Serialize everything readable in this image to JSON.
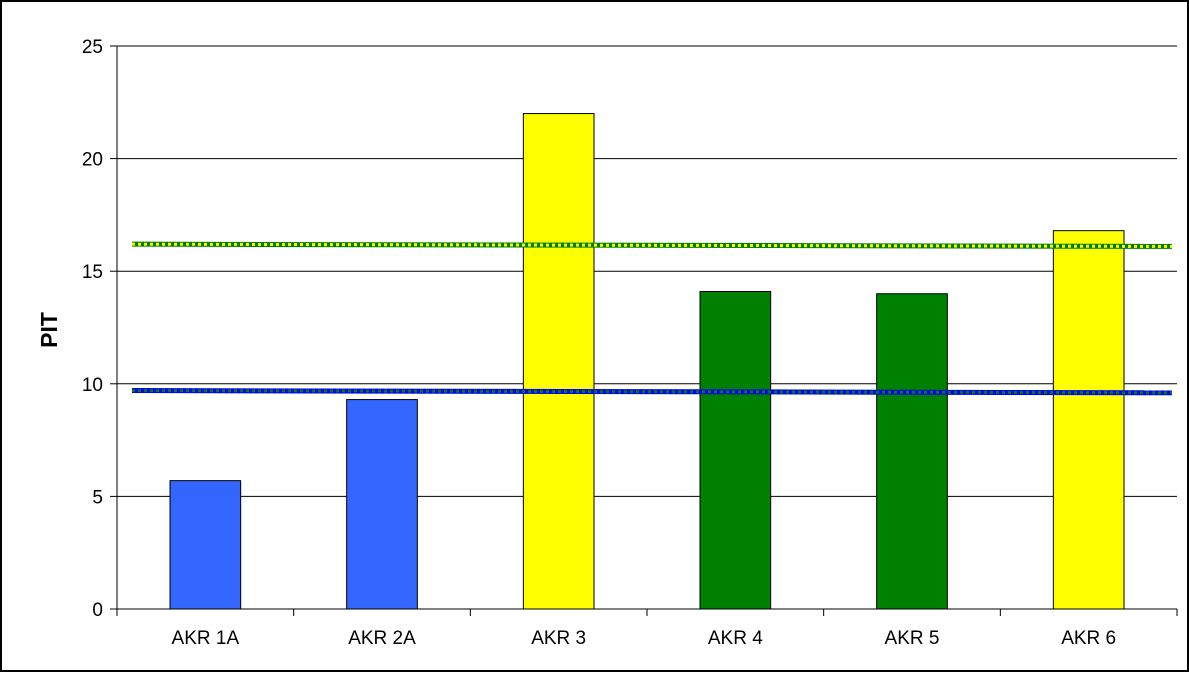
{
  "chart_data": {
    "type": "bar",
    "title": "",
    "xlabel": "",
    "ylabel": "PIT",
    "ylim": [
      0,
      25
    ],
    "yticks": [
      0,
      5,
      10,
      15,
      20,
      25
    ],
    "grid": true,
    "categories": [
      "AKR 1A",
      "AKR 2A",
      "AKR 3",
      "AKR 4",
      "AKR 5",
      "AKR 6"
    ],
    "values": [
      5.7,
      9.3,
      22.0,
      14.1,
      14.0,
      16.8
    ],
    "bar_colors": [
      "#3366ff",
      "#3366ff",
      "#ffff00",
      "#008000",
      "#008000",
      "#ffff00"
    ],
    "reference_lines": [
      {
        "y_start": 16.2,
        "y_end": 16.1,
        "color": "#008000",
        "dash_color": "#ffff00",
        "style": "dotted"
      },
      {
        "y_start": 9.7,
        "y_end": 9.6,
        "color": "#0000ff",
        "dash_color": "#008000",
        "style": "dotted"
      }
    ],
    "plot_background": "#ffffff",
    "gridline_color": "#000000"
  }
}
